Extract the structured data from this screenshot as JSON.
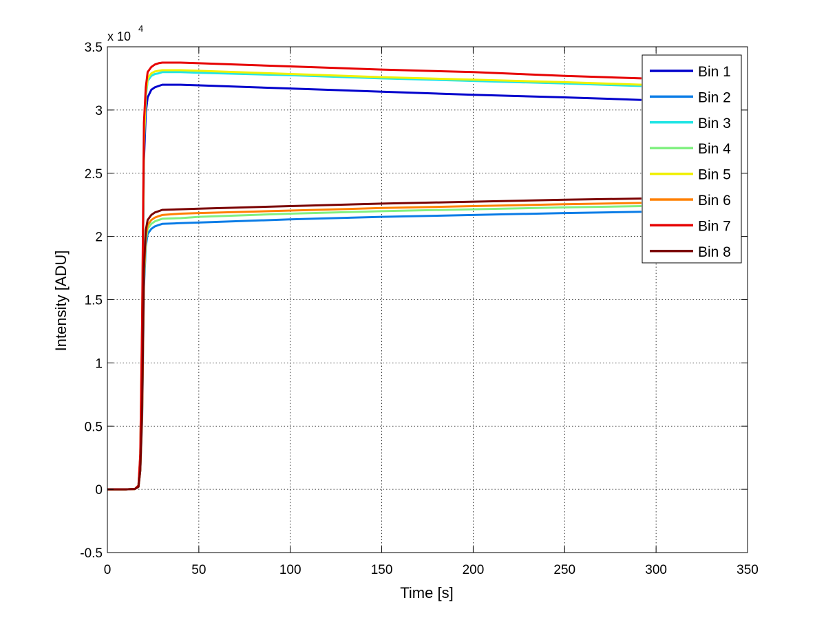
{
  "chart_data": {
    "type": "line",
    "title": "",
    "xlabel": "Time [s]",
    "ylabel": "Intensity [ADU]",
    "xlim": [
      0,
      350
    ],
    "ylim": [
      -5000,
      35000
    ],
    "x_ticks": [
      0,
      50,
      100,
      150,
      200,
      250,
      300,
      350
    ],
    "x_tick_labels": [
      "0",
      "50",
      "100",
      "150",
      "200",
      "250",
      "300",
      "350"
    ],
    "y_ticks": [
      -5000,
      0,
      5000,
      10000,
      15000,
      20000,
      25000,
      30000,
      35000
    ],
    "y_tick_labels": [
      "-0.5",
      "0",
      "0.5",
      "1",
      "1.5",
      "2",
      "2.5",
      "3",
      "3.5"
    ],
    "y_multiplier_base": "x 10",
    "y_multiplier_exponent": "4",
    "grid": true,
    "legend_position": "top-right",
    "series": [
      {
        "name": "Bin 1",
        "color": "#0000cc",
        "x": [
          0,
          10,
          15,
          17,
          18,
          19,
          20,
          21,
          22,
          24,
          26,
          28,
          30,
          40,
          50,
          100,
          150,
          200,
          250,
          292
        ],
        "y": [
          0,
          0,
          30,
          300,
          2500,
          12000,
          26000,
          29800,
          31000,
          31600,
          31800,
          31900,
          32000,
          32000,
          31950,
          31700,
          31450,
          31200,
          31000,
          30800
        ]
      },
      {
        "name": "Bin 2",
        "color": "#0a7ce6",
        "x": [
          0,
          10,
          15,
          17,
          18,
          19,
          20,
          21,
          22,
          24,
          26,
          28,
          30,
          40,
          50,
          100,
          150,
          200,
          250,
          292
        ],
        "y": [
          0,
          0,
          30,
          200,
          1500,
          5500,
          16000,
          19200,
          20200,
          20600,
          20800,
          20900,
          21000,
          21050,
          21100,
          21350,
          21550,
          21700,
          21850,
          21950
        ]
      },
      {
        "name": "Bin 3",
        "color": "#22e5e5",
        "x": [
          0,
          10,
          15,
          17,
          18,
          19,
          20,
          21,
          22,
          24,
          26,
          28,
          30,
          40,
          50,
          100,
          150,
          200,
          250,
          292
        ],
        "y": [
          0,
          0,
          30,
          300,
          2600,
          12500,
          27000,
          31000,
          32300,
          32700,
          32850,
          32900,
          33000,
          33000,
          32950,
          32750,
          32500,
          32300,
          32100,
          31900
        ]
      },
      {
        "name": "Bin 4",
        "color": "#80f080",
        "x": [
          0,
          10,
          15,
          17,
          18,
          19,
          20,
          21,
          22,
          24,
          26,
          28,
          30,
          40,
          50,
          100,
          150,
          200,
          250,
          292
        ],
        "y": [
          0,
          0,
          30,
          200,
          1500,
          5800,
          16500,
          19600,
          20600,
          21000,
          21200,
          21300,
          21400,
          21450,
          21550,
          21800,
          22000,
          22150,
          22300,
          22400
        ]
      },
      {
        "name": "Bin 5",
        "color": "#f0f000",
        "x": [
          0,
          10,
          15,
          17,
          18,
          19,
          20,
          21,
          22,
          24,
          26,
          28,
          30,
          40,
          50,
          100,
          150,
          200,
          250,
          292
        ],
        "y": [
          0,
          0,
          30,
          300,
          2600,
          12800,
          27500,
          31300,
          32500,
          32900,
          33050,
          33100,
          33150,
          33150,
          33100,
          32850,
          32600,
          32400,
          32200,
          32000
        ]
      },
      {
        "name": "Bin 6",
        "color": "#ff8000",
        "x": [
          0,
          10,
          15,
          17,
          18,
          19,
          20,
          21,
          22,
          24,
          26,
          28,
          30,
          40,
          50,
          100,
          150,
          200,
          250,
          292
        ],
        "y": [
          0,
          0,
          30,
          200,
          1500,
          6000,
          17000,
          20000,
          20900,
          21300,
          21500,
          21600,
          21700,
          21800,
          21850,
          22050,
          22250,
          22400,
          22550,
          22650
        ]
      },
      {
        "name": "Bin 7",
        "color": "#e60000",
        "x": [
          0,
          10,
          15,
          17,
          18,
          19,
          20,
          21,
          22,
          24,
          26,
          28,
          30,
          40,
          50,
          100,
          150,
          200,
          250,
          292
        ],
        "y": [
          0,
          0,
          30,
          300,
          2800,
          13500,
          29000,
          31800,
          33000,
          33400,
          33600,
          33700,
          33750,
          33750,
          33700,
          33450,
          33200,
          33000,
          32700,
          32500
        ]
      },
      {
        "name": "Bin 8",
        "color": "#7a0000",
        "x": [
          0,
          10,
          15,
          17,
          18,
          19,
          20,
          21,
          22,
          24,
          26,
          28,
          30,
          40,
          50,
          100,
          150,
          200,
          250,
          292
        ],
        "y": [
          0,
          0,
          30,
          200,
          1500,
          6200,
          17500,
          20500,
          21300,
          21700,
          21900,
          22000,
          22100,
          22150,
          22200,
          22400,
          22600,
          22750,
          22900,
          23000
        ]
      }
    ]
  }
}
